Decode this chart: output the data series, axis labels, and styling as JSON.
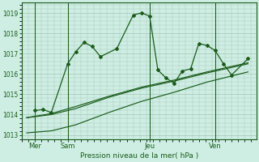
{
  "bg_color": "#ceeee4",
  "grid_color": "#aaccbb",
  "line_color": "#1a5c1a",
  "title": "Pression niveau de la mer( hPa )",
  "ylim": [
    1012.8,
    1019.5
  ],
  "yticks": [
    1013,
    1014,
    1015,
    1016,
    1017,
    1018,
    1019
  ],
  "xlim": [
    -0.3,
    14.0
  ],
  "xtick_labels": [
    "Mer",
    "Sam",
    "Jeu",
    "Ven"
  ],
  "xtick_positions": [
    0.5,
    2.5,
    7.5,
    11.5
  ],
  "vlines": [
    0.5,
    2.5,
    7.5,
    11.5
  ],
  "s1_x": [
    0.5,
    1.0,
    1.5,
    2.5,
    3.0,
    3.5,
    4.0,
    4.5,
    5.5,
    6.5,
    7.0,
    7.5,
    8.0,
    8.5,
    9.0,
    9.5,
    10.0,
    10.5,
    11.0,
    11.5,
    12.0,
    12.5,
    13.5
  ],
  "s1_y": [
    1014.2,
    1014.25,
    1014.1,
    1016.5,
    1017.1,
    1017.55,
    1017.35,
    1016.85,
    1017.25,
    1018.9,
    1019.0,
    1018.85,
    1016.2,
    1015.8,
    1015.55,
    1016.15,
    1016.25,
    1017.5,
    1017.4,
    1017.15,
    1016.5,
    1015.95,
    1016.75
  ],
  "s2_x": [
    0.0,
    1.5,
    3.0,
    5.0,
    7.0,
    9.0,
    11.0,
    13.5
  ],
  "s2_y": [
    1013.85,
    1014.05,
    1014.4,
    1014.9,
    1015.35,
    1015.7,
    1016.1,
    1016.55
  ],
  "s3_x": [
    0.0,
    1.5,
    3.0,
    5.0,
    7.0,
    9.0,
    11.0,
    13.5
  ],
  "s3_y": [
    1013.1,
    1013.2,
    1013.5,
    1014.1,
    1014.65,
    1015.1,
    1015.6,
    1016.1
  ],
  "s4_x": [
    0.0,
    1.5,
    3.0,
    5.0,
    7.0,
    9.0,
    11.0,
    13.5
  ],
  "s4_y": [
    1013.85,
    1014.0,
    1014.3,
    1014.85,
    1015.3,
    1015.65,
    1016.05,
    1016.5
  ]
}
